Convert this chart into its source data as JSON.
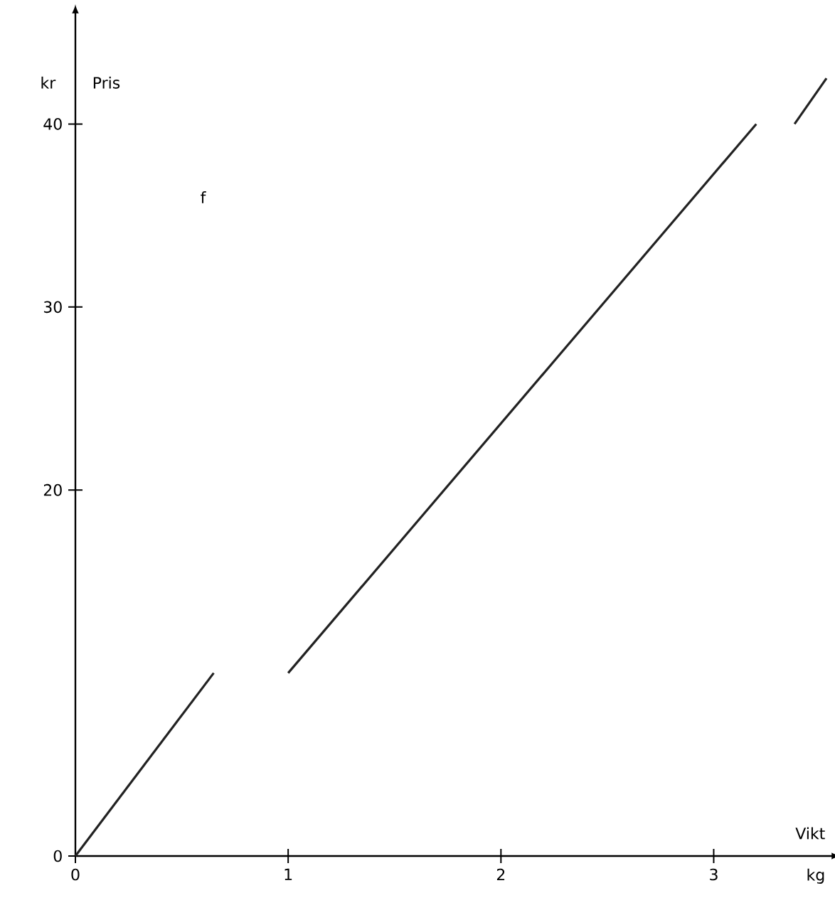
{
  "chart_data": {
    "type": "line",
    "xlabel": "Vikt",
    "ylabel": "Pris",
    "annotations": [
      "f",
      "kr",
      "kg"
    ],
    "xlim": [
      0,
      3.55
    ],
    "ylim": [
      0,
      46
    ],
    "xticks": [
      0,
      1,
      2,
      3
    ],
    "yticks": [
      0,
      20,
      30,
      40
    ],
    "series": [
      {
        "color": "#222222",
        "x": [
          0,
          0.65
        ],
        "values": [
          0,
          10
        ]
      },
      {
        "color": "#222222",
        "x": [
          1,
          3.2
        ],
        "values": [
          10,
          40
        ]
      },
      {
        "color": "#222222",
        "x": [
          3.38,
          3.53
        ],
        "values": [
          40,
          42.5
        ]
      }
    ]
  }
}
